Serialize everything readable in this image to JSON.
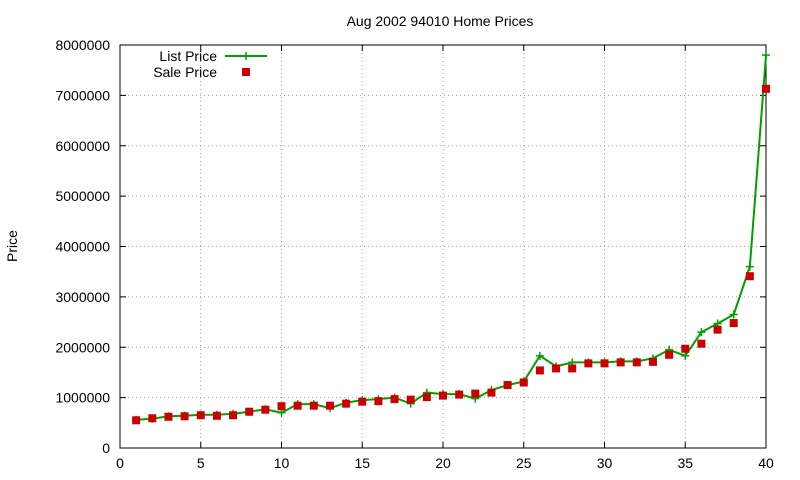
{
  "chart_data": {
    "type": "line",
    "title": "Aug 2002 94010 Home Prices",
    "xlabel": "",
    "ylabel": "Price",
    "xlim": [
      0,
      40
    ],
    "ylim": [
      0,
      8000000
    ],
    "x_ticks": [
      0,
      5,
      10,
      15,
      20,
      25,
      30,
      35,
      40
    ],
    "y_ticks": [
      0,
      1000000,
      2000000,
      3000000,
      4000000,
      5000000,
      6000000,
      7000000,
      8000000
    ],
    "x_tick_labels": [
      "0",
      "5",
      "10",
      "15",
      "20",
      "25",
      "30",
      "35",
      "40"
    ],
    "y_tick_labels": [
      "0",
      "1000000",
      "2000000",
      "3000000",
      "4000000",
      "5000000",
      "6000000",
      "7000000",
      "8000000"
    ],
    "grid": true,
    "legend_position": "top-left",
    "series": [
      {
        "name": "List Price",
        "style": "lines+plus-markers",
        "color": "#00a000",
        "x": [
          1,
          2,
          3,
          4,
          5,
          6,
          7,
          8,
          9,
          10,
          11,
          12,
          13,
          14,
          15,
          16,
          17,
          18,
          19,
          20,
          21,
          22,
          23,
          24,
          25,
          26,
          27,
          28,
          29,
          30,
          31,
          32,
          33,
          34,
          35,
          36,
          37,
          38,
          39,
          40
        ],
        "y": [
          560000,
          580000,
          630000,
          640000,
          660000,
          660000,
          680000,
          720000,
          770000,
          700000,
          870000,
          870000,
          790000,
          900000,
          950000,
          970000,
          1000000,
          880000,
          1100000,
          1070000,
          1070000,
          980000,
          1150000,
          1250000,
          1320000,
          1830000,
          1620000,
          1700000,
          1700000,
          1700000,
          1720000,
          1720000,
          1780000,
          1950000,
          1830000,
          2300000,
          2470000,
          2650000,
          3600000,
          7800000
        ]
      },
      {
        "name": "Sale Price",
        "style": "square-markers",
        "color": "#cc0000",
        "x": [
          1,
          2,
          3,
          4,
          5,
          6,
          7,
          8,
          9,
          10,
          11,
          12,
          13,
          14,
          15,
          16,
          17,
          18,
          19,
          20,
          21,
          22,
          23,
          24,
          25,
          26,
          27,
          28,
          29,
          30,
          31,
          32,
          33,
          34,
          35,
          36,
          37,
          38,
          39,
          40
        ],
        "y": [
          550000,
          590000,
          620000,
          630000,
          650000,
          640000,
          650000,
          720000,
          760000,
          830000,
          840000,
          840000,
          840000,
          880000,
          920000,
          930000,
          970000,
          960000,
          1010000,
          1040000,
          1060000,
          1080000,
          1100000,
          1250000,
          1300000,
          1540000,
          1580000,
          1580000,
          1680000,
          1680000,
          1700000,
          1700000,
          1710000,
          1850000,
          1970000,
          2070000,
          2350000,
          2480000,
          3410000,
          7130000
        ]
      }
    ]
  }
}
